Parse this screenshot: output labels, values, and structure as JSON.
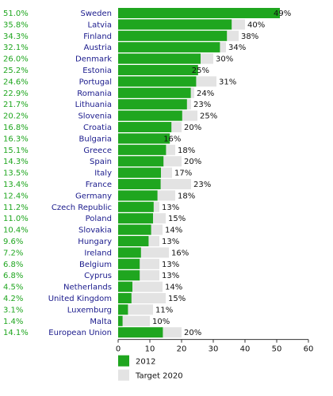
{
  "chart_data": {
    "type": "bar",
    "orientation": "horizontal",
    "categories": [
      "Sweden",
      "Latvia",
      "Finland",
      "Austria",
      "Denmark",
      "Estonia",
      "Portugal",
      "Romania",
      "Lithuania",
      "Slovenia",
      "Croatia",
      "Bulgaria",
      "Greece",
      "Spain",
      "Italy",
      "France",
      "Germany",
      "Czech Republic",
      "Poland",
      "Slovakia",
      "Hungary",
      "Ireland",
      "Belgium",
      "Cyprus",
      "Netherlands",
      "United Kingdom",
      "Luxemburg",
      "Malta",
      "European Union"
    ],
    "series": [
      {
        "name": "2012",
        "color": "#1fa61f",
        "values": [
          51.0,
          35.8,
          34.3,
          32.1,
          26.0,
          25.2,
          24.6,
          22.9,
          21.7,
          20.2,
          16.8,
          16.3,
          15.1,
          14.3,
          13.5,
          13.4,
          12.4,
          11.2,
          11.0,
          10.4,
          9.6,
          7.2,
          6.8,
          6.8,
          4.5,
          4.2,
          3.1,
          1.4,
          14.1
        ],
        "labels": [
          "51.0%",
          "35.8%",
          "34.3%",
          "32.1%",
          "26.0%",
          "25.2%",
          "24.6%",
          "22.9%",
          "21.7%",
          "20.2%",
          "16.8%",
          "16.3%",
          "15.1%",
          "14.3%",
          "13.5%",
          "13.4%",
          "12.4%",
          "11.2%",
          "11.0%",
          "10.4%",
          "9.6%",
          "7.2%",
          "6.8%",
          "6.8%",
          "4.5%",
          "4.2%",
          "3.1%",
          "1.4%",
          "14.1%"
        ]
      },
      {
        "name": "Target 2020",
        "color": "#e3e3e3",
        "values": [
          49,
          40,
          38,
          34,
          30,
          25,
          31,
          24,
          23,
          25,
          20,
          16,
          18,
          20,
          17,
          23,
          18,
          13,
          15,
          14,
          13,
          16,
          13,
          13,
          14,
          15,
          11,
          10,
          20
        ],
        "labels": [
          "49%",
          "40%",
          "38%",
          "34%",
          "30%",
          "25%",
          "31%",
          "24%",
          "23%",
          "25%",
          "20%",
          "16%",
          "18%",
          "20%",
          "17%",
          "23%",
          "18%",
          "13%",
          "15%",
          "14%",
          "13%",
          "16%",
          "13%",
          "13%",
          "14%",
          "15%",
          "11%",
          "10%",
          "20%"
        ]
      }
    ],
    "xlim": [
      0,
      60
    ],
    "xticks": [
      "0",
      "10",
      "20",
      "30",
      "40",
      "50",
      "60"
    ],
    "legend_position": "bottom-left",
    "grid": false,
    "title": "",
    "xlabel": "",
    "ylabel": ""
  }
}
